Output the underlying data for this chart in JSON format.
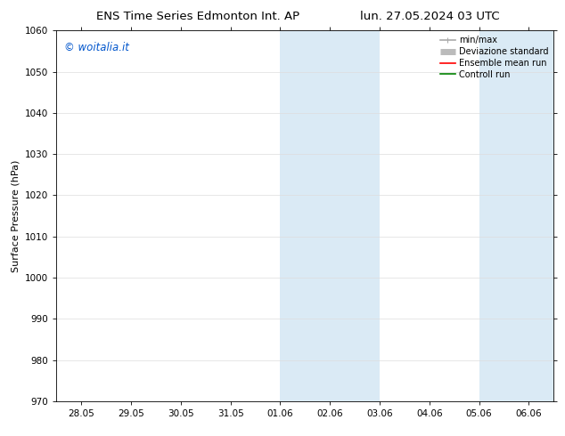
{
  "title_left": "ENS Time Series Edmonton Int. AP",
  "title_right": "lun. 27.05.2024 03 UTC",
  "ylabel": "Surface Pressure (hPa)",
  "ylim": [
    970,
    1060
  ],
  "yticks": [
    970,
    980,
    990,
    1000,
    1010,
    1020,
    1030,
    1040,
    1050,
    1060
  ],
  "xtick_labels": [
    "28.05",
    "29.05",
    "30.05",
    "31.05",
    "01.06",
    "02.06",
    "03.06",
    "04.06",
    "05.06",
    "06.06"
  ],
  "xtick_positions": [
    0,
    1,
    2,
    3,
    4,
    5,
    6,
    7,
    8,
    9
  ],
  "shaded_bands": [
    {
      "x_start": 4.0,
      "x_end": 6.0
    },
    {
      "x_start": 8.0,
      "x_end": 9.5
    }
  ],
  "shaded_color": "#daeaf5",
  "watermark_text": "© woitalia.it",
  "watermark_color": "#0055cc",
  "legend_entries": [
    {
      "label": "min/max",
      "color": "#aaaaaa",
      "lw": 1.2,
      "linestyle": "-"
    },
    {
      "label": "Deviazione standard",
      "color": "#bbbbbb",
      "lw": 5,
      "linestyle": "-"
    },
    {
      "label": "Ensemble mean run",
      "color": "#ff0000",
      "lw": 1.2,
      "linestyle": "-"
    },
    {
      "label": "Controll run",
      "color": "#008000",
      "lw": 1.2,
      "linestyle": "-"
    }
  ],
  "grid_color": "#dddddd",
  "bg_color": "#ffffff",
  "title_fontsize": 9.5,
  "tick_fontsize": 7.5,
  "ylabel_fontsize": 8,
  "watermark_fontsize": 8.5,
  "legend_fontsize": 7,
  "fig_width": 6.34,
  "fig_height": 4.9,
  "xlim": [
    -0.5,
    9.5
  ]
}
